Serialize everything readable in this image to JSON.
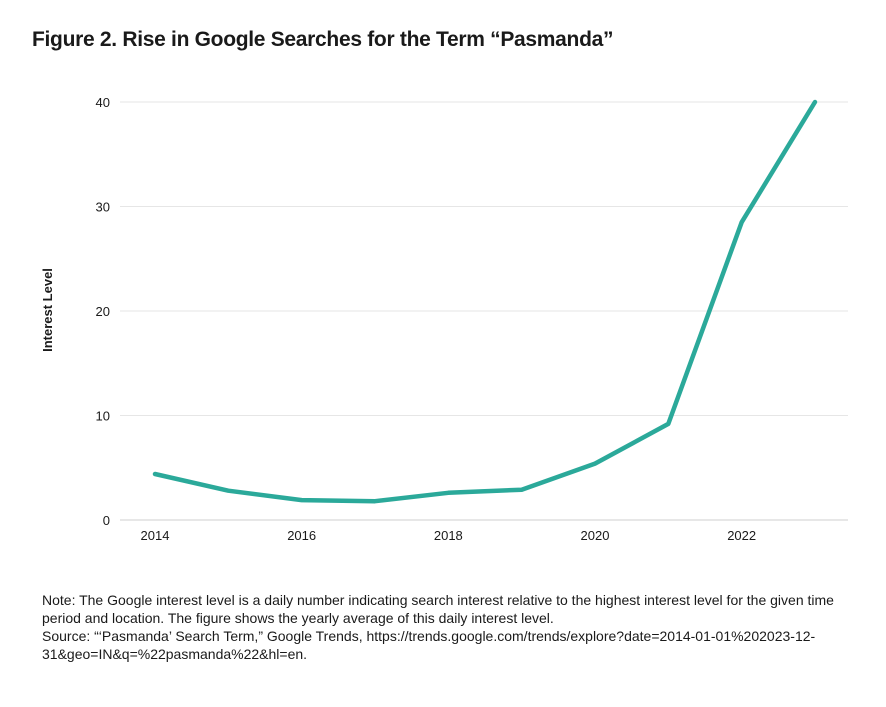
{
  "title": "Figure 2. Rise in Google Searches for the Term “Pasmanda”",
  "chart_data": {
    "type": "line",
    "ylabel": "Interest Level",
    "xlabel": "",
    "x": [
      2014,
      2015,
      2016,
      2017,
      2018,
      2019,
      2020,
      2021,
      2022,
      2023
    ],
    "series": [
      {
        "name": "Pasmanda",
        "values": [
          4.4,
          2.8,
          1.9,
          1.8,
          2.6,
          2.9,
          5.4,
          9.2,
          28.5,
          40.0
        ],
        "color": "#2ba99a"
      }
    ],
    "xticks": [
      "2014",
      "2016",
      "2018",
      "2020",
      "2022"
    ],
    "yticks": [
      "0",
      "10",
      "20",
      "30",
      "40"
    ],
    "ylim": [
      0,
      40
    ],
    "xlim": [
      2014,
      2023
    ],
    "grid": true
  },
  "note": {
    "note_text": "Note: The Google interest level is a daily number indicating search interest relative to the highest interest level for the given time period and location. The figure shows the yearly average of this daily interest level.",
    "source_text": "Source: “‘Pasmanda’ Search Term,” Google Trends, https://trends.google.com/trends/explore?date=2014-01-01%202023-12-31&geo=IN&q=%22pasmanda%22&hl=en."
  }
}
